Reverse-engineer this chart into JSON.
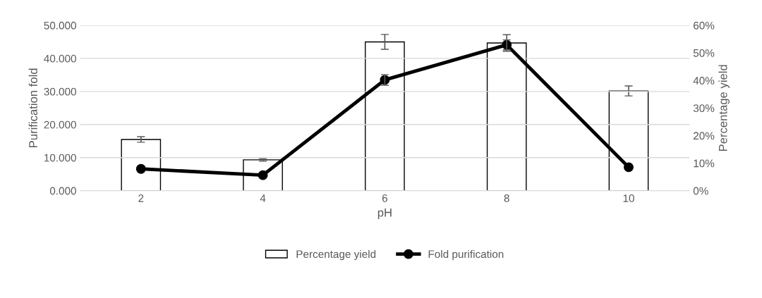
{
  "chart_data": {
    "type": "bar",
    "xlabel": "pH",
    "ylabel": "Purification fold",
    "y2label": "Percentage yield",
    "categories": [
      "2",
      "4",
      "6",
      "8",
      "10"
    ],
    "series": [
      {
        "name": "Percentage yield",
        "axis": "y2",
        "color": "#ffffff",
        "values": [
          18.6,
          11.2,
          54.0,
          53.6,
          36.2
        ],
        "errors": [
          1.0,
          0.5,
          2.7,
          3.0,
          1.8
        ]
      },
      {
        "name": "Fold purification",
        "type": "line",
        "color": "#000000",
        "values": [
          6.6,
          4.7,
          33.5,
          44.1,
          7.1
        ],
        "errors": [
          null,
          null,
          1.6,
          1.5,
          null
        ]
      }
    ],
    "ylim": [
      0,
      50
    ],
    "yticks": [
      {
        "value": 0,
        "label": "0.000"
      },
      {
        "value": 10,
        "label": "10.000"
      },
      {
        "value": 20,
        "label": "20.000"
      },
      {
        "value": 30,
        "label": "30.000"
      },
      {
        "value": 40,
        "label": "40.000"
      },
      {
        "value": 50,
        "label": "50.000"
      }
    ],
    "y2lim": [
      0,
      60
    ],
    "y2ticks": [
      {
        "value": 0,
        "label": "0%"
      },
      {
        "value": 10,
        "label": "10%"
      },
      {
        "value": 20,
        "label": "20%"
      },
      {
        "value": 30,
        "label": "30%"
      },
      {
        "value": 40,
        "label": "40%"
      },
      {
        "value": 50,
        "label": "50%"
      },
      {
        "value": 60,
        "label": "60%"
      }
    ],
    "grid": "y",
    "legend": "bottom",
    "marker": "circle",
    "line_style": "solid"
  }
}
